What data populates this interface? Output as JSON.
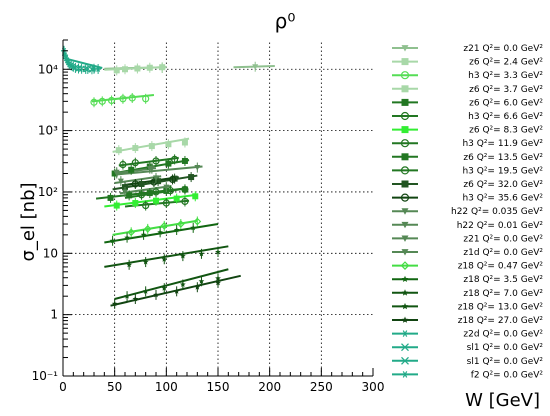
{
  "chart_data": {
    "type": "scatter",
    "title": "ρ⁰",
    "xlabel": "W [GeV]",
    "ylabel": "σ_el [nb]",
    "xlim": [
      0,
      300
    ],
    "ylim": [
      0.1,
      30000
    ],
    "yscale": "log",
    "grid": true,
    "legend_position": "right",
    "x_ticks": [
      0,
      50,
      100,
      150,
      200,
      250,
      300
    ],
    "y_ticks": [
      0.1,
      1,
      10,
      100,
      1000,
      10000
    ],
    "y_tick_labels": [
      "10⁻¹",
      "1",
      "10",
      "10²",
      "10³",
      "10⁴"
    ],
    "series": [
      {
        "label": "z21 Q²=  0.0 GeV²",
        "color": "#8fc08f",
        "marker": "tri-down",
        "x": [
          96,
          186
        ],
        "y": [
          10500,
          11000
        ],
        "fit": [
          [
            40,
            10200
          ],
          [
            100,
            10800
          ]
        ],
        "fit2": [
          [
            165,
            10800
          ],
          [
            205,
            11300
          ]
        ]
      },
      {
        "label": "z6 Q²=  2.4 GeV²",
        "color": "#a8d8a8",
        "marker": "square",
        "x": [
          52,
          60,
          72,
          84,
          96
        ],
        "y": [
          9600,
          10000,
          10300,
          10600,
          10800
        ],
        "fit": [
          [
            40,
            9800
          ],
          [
            100,
            10900
          ]
        ]
      },
      {
        "label": "h3 Q²=  3.3 GeV²",
        "color": "#55dd55",
        "marker": "circle-open",
        "x": [
          30,
          38,
          47,
          58,
          67,
          80
        ],
        "y": [
          2900,
          3000,
          3100,
          3300,
          3400,
          3300
        ],
        "fit": [
          [
            28,
            3000
          ],
          [
            88,
            3800
          ]
        ]
      },
      {
        "label": "z6 Q²=  3.7 GeV²",
        "color": "#a8d8a8",
        "marker": "square",
        "x": [
          54,
          70,
          86,
          102,
          118
        ],
        "y": [
          480,
          520,
          560,
          600,
          640
        ],
        "fit": [
          [
            48,
            450
          ],
          [
            122,
            740
          ]
        ]
      },
      {
        "label": "z6 Q²=  6.0 GeV²",
        "color": "#227722",
        "marker": "square",
        "x": [
          50,
          66,
          84,
          102,
          118
        ],
        "y": [
          200,
          230,
          260,
          290,
          320
        ],
        "fit": [
          [
            48,
            200
          ],
          [
            122,
            330
          ]
        ]
      },
      {
        "label": "h3 Q²=  6.6 GeV²",
        "color": "#227722",
        "marker": "circle-open",
        "x": [
          58,
          70,
          90,
          108
        ],
        "y": [
          280,
          300,
          320,
          340
        ],
        "fit": [
          [
            54,
            270
          ],
          [
            112,
            360
          ]
        ]
      },
      {
        "label": "z6 Q²=  8.3 GeV²",
        "color": "#33ee33",
        "marker": "square",
        "x": [
          52,
          70,
          90,
          110,
          128
        ],
        "y": [
          60,
          66,
          72,
          78,
          85
        ],
        "fit": [
          [
            40,
            58
          ],
          [
            130,
            90
          ]
        ]
      },
      {
        "label": "h3 Q²= 11.9 GeV²",
        "color": "#227722",
        "marker": "circle-open",
        "x": [
          76,
          90,
          104,
          118
        ],
        "y": [
          90,
          100,
          105,
          110
        ],
        "fit": [
          [
            60,
            80
          ],
          [
            120,
            115
          ]
        ]
      },
      {
        "label": "z6 Q²= 13.5 GeV²",
        "color": "#227722",
        "marker": "square",
        "x": [
          46,
          64,
          84,
          100,
          118
        ],
        "y": [
          80,
          88,
          96,
          104,
          110
        ],
        "fit": [
          [
            32,
            78
          ],
          [
            120,
            115
          ]
        ]
      },
      {
        "label": "h3 Q²= 19.5 GeV²",
        "color": "#227722",
        "marker": "circle-open",
        "x": [
          80,
          100,
          118
        ],
        "y": [
          60,
          66,
          70
        ],
        "fit": [
          [
            60,
            58
          ],
          [
            122,
            72
          ]
        ]
      },
      {
        "label": "z6 Q²= 32.0 GeV²",
        "color": "#225522",
        "marker": "square",
        "x": [
          60,
          76,
          92,
          108,
          124
        ],
        "y": [
          120,
          135,
          150,
          165,
          175
        ],
        "fit": [
          [
            48,
            110
          ],
          [
            130,
            185
          ]
        ]
      },
      {
        "label": "h3 Q²= 35.6 GeV²",
        "color": "#114411",
        "marker": "circle-open",
        "x": [
          70,
          88,
          106
        ],
        "y": [
          135,
          145,
          160
        ],
        "fit": [
          [
            60,
            130
          ],
          [
            112,
            175
          ]
        ]
      },
      {
        "label": "h22 Q²= 0.035 GeV²",
        "color": "#558855",
        "marker": "tri-down",
        "x": [
          52,
          86,
          130
        ],
        "y": [
          200,
          240,
          250
        ],
        "fit": [
          [
            48,
            190
          ],
          [
            135,
            260
          ]
        ]
      },
      {
        "label": "h22 Q²= 0.01 GeV²",
        "color": "#558855",
        "marker": "tri-down",
        "x": [
          52,
          84
        ],
        "y": [
          210,
          240
        ],
        "fit": [
          [
            48,
            200
          ],
          [
            90,
            245
          ]
        ]
      },
      {
        "label": "z21 Q²=  0.0 GeV²",
        "color": "#558855",
        "marker": "tri-down",
        "x": [
          56,
          90
        ],
        "y": [
          150,
          170
        ],
        "fit": [
          [
            50,
            140
          ],
          [
            95,
            180
          ]
        ]
      },
      {
        "label": "z1d Q²=  0.0 GeV²",
        "color": "#558855",
        "marker": "tri-down",
        "x": [
          60,
          100
        ],
        "y": [
          100,
          120
        ],
        "fit": [
          [
            55,
            95
          ],
          [
            105,
            125
          ]
        ]
      },
      {
        "label": "z18 Q²=  0.47 GeV²",
        "color": "#44dd44",
        "marker": "diamond-open",
        "x": [
          66,
          82,
          98,
          114,
          130
        ],
        "y": [
          22,
          25,
          28,
          30,
          33
        ],
        "fit": [
          [
            48,
            20
          ],
          [
            130,
            34
          ]
        ]
      },
      {
        "label": "z18 Q²=  3.5 GeV²",
        "color": "#116611",
        "marker": "star",
        "x": [
          48,
          62,
          78,
          94,
          110,
          126
        ],
        "y": [
          16,
          18,
          20,
          22,
          24,
          26
        ],
        "fit": [
          [
            40,
            15
          ],
          [
            150,
            30
          ]
        ]
      },
      {
        "label": "z18 Q²=  7.0 GeV²",
        "color": "#115511",
        "marker": "star",
        "x": [
          64,
          80,
          98,
          116,
          134,
          150
        ],
        "y": [
          6.5,
          7.2,
          8.0,
          9.0,
          9.8,
          10.5
        ],
        "fit": [
          [
            40,
            6.0
          ],
          [
            160,
            13
          ]
        ]
      },
      {
        "label": "z18 Q²= 13.0 GeV²",
        "color": "#115511",
        "marker": "star",
        "x": [
          62,
          80,
          98,
          116,
          134,
          150
        ],
        "y": [
          2.0,
          2.4,
          2.7,
          3.1,
          3.5,
          3.9
        ],
        "fit": [
          [
            50,
            1.8
          ],
          [
            160,
            5.5
          ]
        ]
      },
      {
        "label": "z18 Q²= 27.0 GeV²",
        "color": "#114411",
        "marker": "star",
        "x": [
          50,
          70,
          90,
          110,
          130,
          150
        ],
        "y": [
          1.5,
          1.8,
          2.1,
          2.4,
          2.8,
          3.3
        ],
        "fit": [
          [
            46,
            1.4
          ],
          [
            172,
            4.3
          ]
        ]
      },
      {
        "label": "z2d Q²=  0.0 GeV²",
        "color": "#22aa88",
        "marker": "asterisk",
        "x": [
          1,
          2,
          3,
          4,
          5,
          6,
          8,
          10
        ],
        "y": [
          20000,
          17000,
          15000,
          14000,
          13000,
          12000,
          11500,
          11000
        ],
        "fit": [
          [
            2,
            15000
          ],
          [
            38,
            10500
          ]
        ]
      },
      {
        "label": "sl1 Q²=  0.0 GeV²",
        "color": "#22aa88",
        "marker": "cross",
        "x": [
          12,
          15,
          18,
          22
        ],
        "y": [
          10500,
          10300,
          10200,
          10100
        ],
        "fit": null
      },
      {
        "label": "sl1 Q²=  0.0 GeV²",
        "color": "#22aa88",
        "marker": "cross",
        "x": [
          24,
          28
        ],
        "y": [
          10100,
          10000
        ],
        "fit": null
      },
      {
        "label": "f2 Q²=  0.0 GeV²",
        "color": "#22aa88",
        "marker": "asterisk",
        "x": [
          30,
          34
        ],
        "y": [
          10200,
          10100
        ],
        "fit": null
      }
    ]
  }
}
